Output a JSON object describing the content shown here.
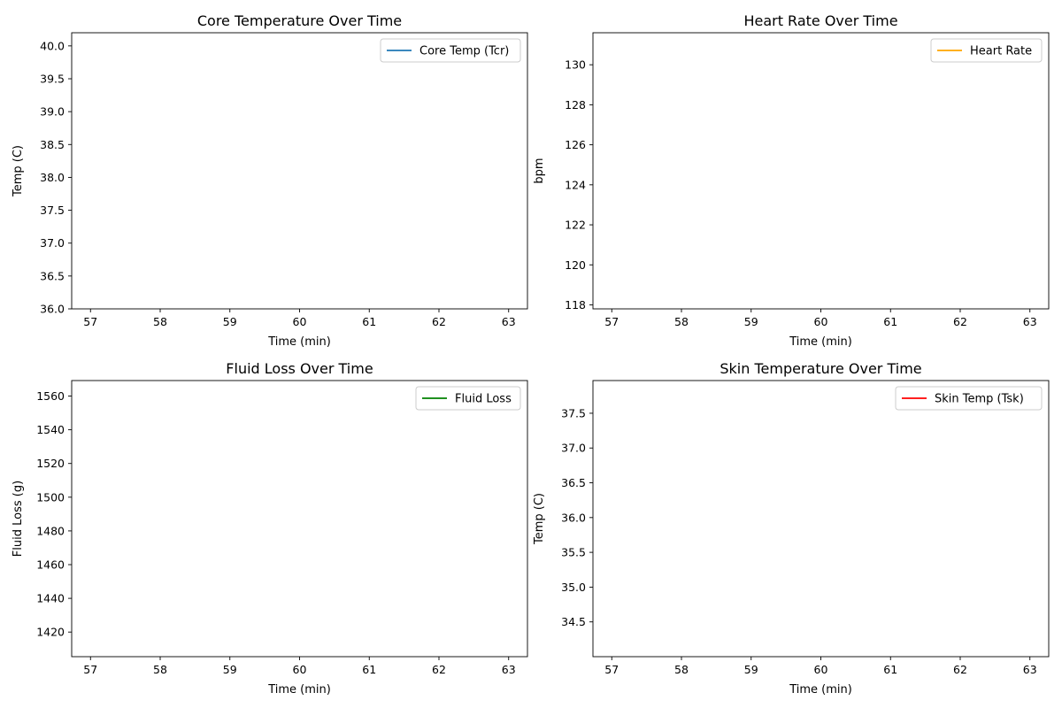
{
  "chart_data": [
    {
      "type": "line",
      "title": "Core Temperature Over Time",
      "xlabel": "Time (min)",
      "ylabel": "Temp (C)",
      "xlim": [
        56.73,
        63.27
      ],
      "ylim": [
        36.0,
        40.2
      ],
      "xticks": [
        57,
        58,
        59,
        60,
        61,
        62,
        63
      ],
      "yticks": [
        36.0,
        36.5,
        37.0,
        37.5,
        38.0,
        38.5,
        39.0,
        39.5,
        40.0
      ],
      "ytick_decimals": 1,
      "legend_position": "top-right",
      "series": [
        {
          "name": "Core Temp (Tcr)",
          "color": "#1f77b4",
          "x": [],
          "y": []
        }
      ]
    },
    {
      "type": "line",
      "title": "Heart Rate Over Time",
      "xlabel": "Time (min)",
      "ylabel": "bpm",
      "xlim": [
        56.73,
        63.27
      ],
      "ylim": [
        117.8,
        131.6
      ],
      "xticks": [
        57,
        58,
        59,
        60,
        61,
        62,
        63
      ],
      "yticks": [
        118,
        120,
        122,
        124,
        126,
        128,
        130
      ],
      "ytick_decimals": 0,
      "legend_position": "top-right",
      "series": [
        {
          "name": "Heart Rate",
          "color": "#ffa500",
          "x": [],
          "y": []
        }
      ]
    },
    {
      "type": "line",
      "title": "Fluid Loss Over Time",
      "xlabel": "Time (min)",
      "ylabel": "Fluid Loss (g)",
      "xlim": [
        56.73,
        63.27
      ],
      "ylim": [
        1405.4,
        1569.2
      ],
      "xticks": [
        57,
        58,
        59,
        60,
        61,
        62,
        63
      ],
      "yticks": [
        1420,
        1440,
        1460,
        1480,
        1500,
        1520,
        1540,
        1560
      ],
      "ytick_decimals": 0,
      "legend_position": "top-right",
      "series": [
        {
          "name": "Fluid Loss",
          "color": "#008000",
          "x": [],
          "y": []
        }
      ]
    },
    {
      "type": "line",
      "title": "Skin Temperature Over Time",
      "xlabel": "Time (min)",
      "ylabel": "Temp (C)",
      "xlim": [
        56.73,
        63.27
      ],
      "ylim": [
        34.0,
        37.97
      ],
      "xticks": [
        57,
        58,
        59,
        60,
        61,
        62,
        63
      ],
      "yticks": [
        34.5,
        35.0,
        35.5,
        36.0,
        36.5,
        37.0,
        37.5
      ],
      "ytick_decimals": 1,
      "legend_position": "top-right",
      "series": [
        {
          "name": "Skin Temp (Tsk)",
          "color": "#ff0000",
          "x": [],
          "y": []
        }
      ]
    }
  ]
}
